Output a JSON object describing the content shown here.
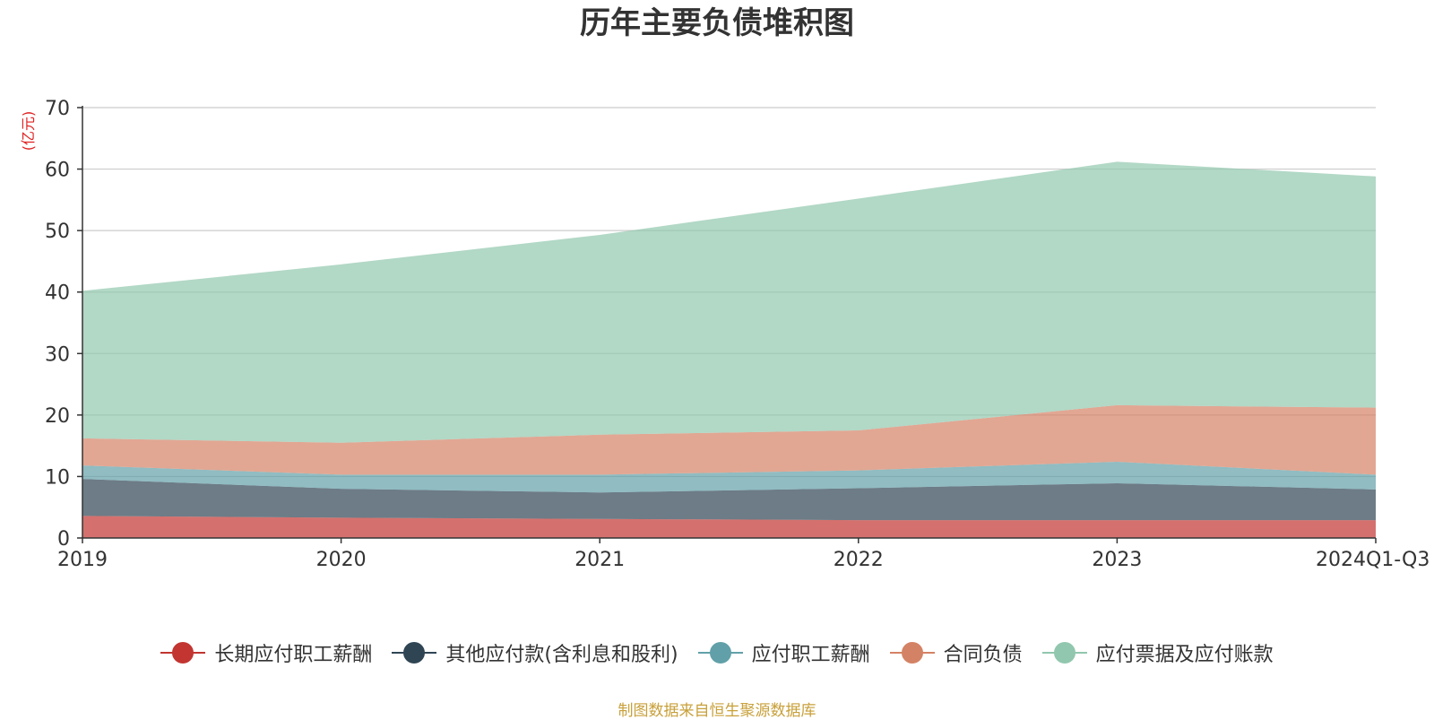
{
  "colors": {
    "long_term_payroll": "#c23531",
    "other_payables": "#2f4554",
    "payroll_payable": "#61a0a8",
    "contract_liabilities": "#d48265",
    "notes_accounts_payable": "#91c7ae",
    "axis": "#333333",
    "grid": "#cccccc",
    "unit_label": "#e02020",
    "source_note": "#c8a03a"
  },
  "chart_data": {
    "type": "area",
    "stacked": true,
    "title": "历年主要负债堆积图",
    "ylabel": "(亿元)",
    "xlabel": "",
    "categories": [
      "2019",
      "2020",
      "2021",
      "2022",
      "2023",
      "2024Q1-Q3"
    ],
    "ylim": [
      0,
      70
    ],
    "yticks": [
      0,
      10,
      20,
      30,
      40,
      50,
      60,
      70
    ],
    "grid": true,
    "legend_position": "bottom",
    "series": [
      {
        "name": "长期应付职工薪酬",
        "key": "long_term_payroll",
        "values": [
          3.6,
          3.3,
          3.1,
          2.9,
          2.9,
          2.9
        ]
      },
      {
        "name": "其他应付款(含利息和股利)",
        "key": "other_payables",
        "values": [
          6.0,
          4.7,
          4.3,
          5.2,
          6.0,
          5.0
        ]
      },
      {
        "name": "应付职工薪酬",
        "key": "payroll_payable",
        "values": [
          2.2,
          2.3,
          2.9,
          2.9,
          3.5,
          2.4
        ]
      },
      {
        "name": "合同负债",
        "key": "contract_liabilities",
        "values": [
          4.4,
          5.2,
          6.5,
          6.5,
          9.2,
          10.9
        ]
      },
      {
        "name": "应付票据及应付账款",
        "key": "notes_accounts_payable",
        "values": [
          24.0,
          29.0,
          32.5,
          37.7,
          39.6,
          37.6
        ]
      }
    ]
  },
  "source_note": "制图数据来自恒生聚源数据库"
}
